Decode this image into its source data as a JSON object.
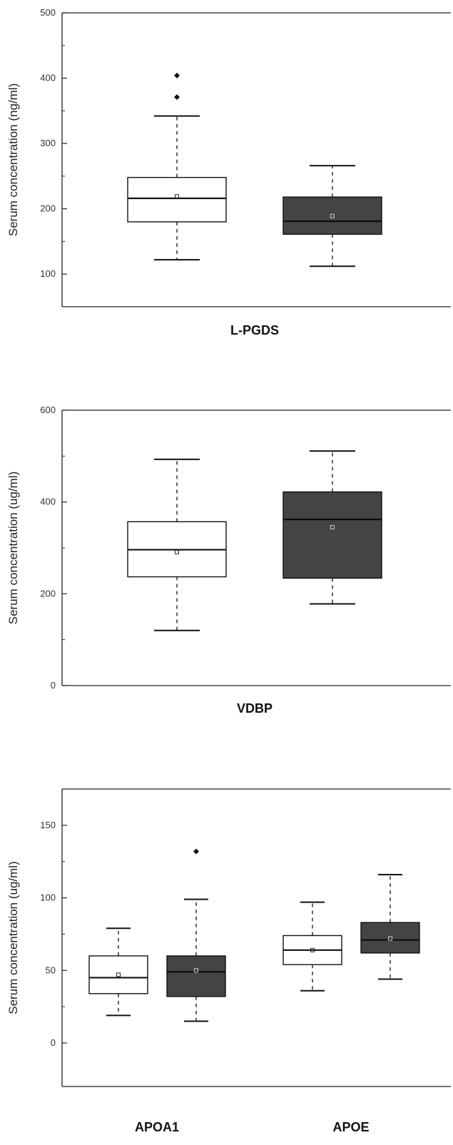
{
  "colors": {
    "group1_fill": "#ffffff",
    "group2_fill": "#444444",
    "stroke": "#111111"
  },
  "chart_data": [
    {
      "type": "box",
      "ylabel": "Serum concentration (ng/ml)",
      "ylim": [
        50,
        500
      ],
      "yticks": [
        100,
        200,
        300,
        400,
        500
      ],
      "categories": [
        "L-PGDS"
      ],
      "boxes": [
        {
          "category": "L-PGDS",
          "group": 1,
          "whisker_low": 122,
          "q1": 180,
          "median": 216,
          "q3": 248,
          "whisker_high": 342,
          "mean": 219,
          "outliers": [
            371,
            404
          ]
        },
        {
          "category": "L-PGDS",
          "group": 2,
          "whisker_low": 112,
          "q1": 161,
          "median": 181,
          "q3": 218,
          "whisker_high": 266,
          "mean": 189,
          "outliers": []
        }
      ]
    },
    {
      "type": "box",
      "ylabel": "Serum concentration (ug/ml)",
      "ylim": [
        0,
        600
      ],
      "yticks": [
        0,
        200,
        400,
        600
      ],
      "categories": [
        "VDBP"
      ],
      "boxes": [
        {
          "category": "VDBP",
          "group": 1,
          "whisker_low": 120,
          "q1": 237,
          "median": 296,
          "q3": 357,
          "whisker_high": 493,
          "mean": 291,
          "outliers": []
        },
        {
          "category": "VDBP",
          "group": 2,
          "whisker_low": 178,
          "q1": 234,
          "median": 362,
          "q3": 422,
          "whisker_high": 511,
          "mean": 345,
          "outliers": []
        }
      ]
    },
    {
      "type": "box",
      "ylabel": "Serum concentration (ug/ml)",
      "ylim": [
        -30,
        175
      ],
      "yticks": [
        0,
        50,
        100,
        150
      ],
      "categories": [
        "APOA1",
        "APOE"
      ],
      "boxes": [
        {
          "category": "APOA1",
          "group": 1,
          "whisker_low": 19,
          "q1": 34,
          "median": 45,
          "q3": 60,
          "whisker_high": 79,
          "mean": 47,
          "outliers": []
        },
        {
          "category": "APOA1",
          "group": 2,
          "whisker_low": 15,
          "q1": 32,
          "median": 49,
          "q3": 60,
          "whisker_high": 99,
          "mean": 50,
          "outliers": [
            132
          ]
        },
        {
          "category": "APOE",
          "group": 1,
          "whisker_low": 36,
          "q1": 54,
          "median": 64,
          "q3": 74,
          "whisker_high": 97,
          "mean": 64,
          "outliers": []
        },
        {
          "category": "APOE",
          "group": 2,
          "whisker_low": 44,
          "q1": 62,
          "median": 71,
          "q3": 83,
          "whisker_high": 116,
          "mean": 72,
          "outliers": []
        }
      ]
    }
  ]
}
